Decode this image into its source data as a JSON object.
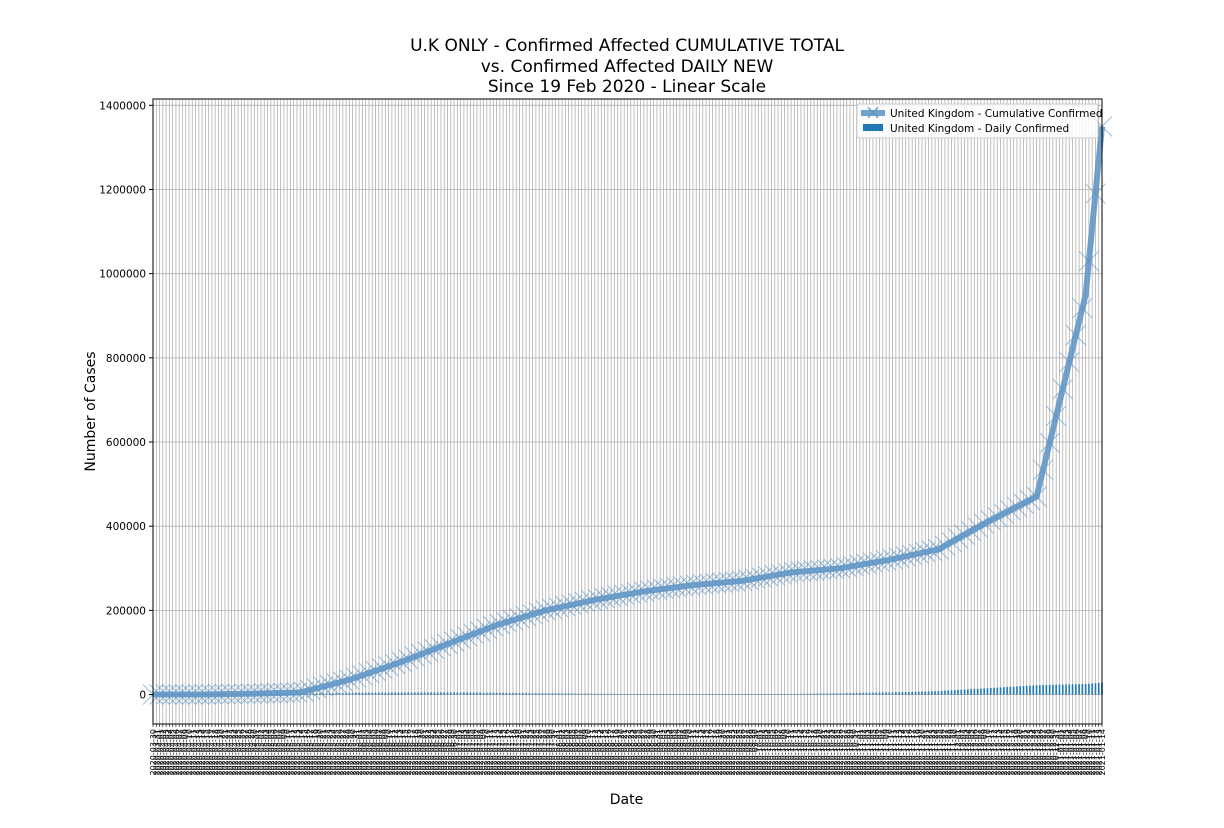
{
  "chart_data": {
    "type": "line",
    "title": "U.K ONLY - Confirmed Affected CUMULATIVE TOTAL",
    "subtitle": "vs. Confirmed Affected DAILY NEW",
    "subtitle2": "Since 19 Feb 2020 - Linear Scale",
    "xlabel": "Date",
    "ylabel": "Number of Cases",
    "ylim": [
      -70000,
      1415000
    ],
    "yticks": [
      0,
      200000,
      400000,
      600000,
      800000,
      1000000,
      1200000,
      1400000
    ],
    "x_range": [
      "2020-03-30",
      "2021-01-14"
    ],
    "grid": true,
    "legend_position": "top-right",
    "x": [
      "2020-03-30",
      "2020-04-14",
      "2020-04-29",
      "2020-05-14",
      "2020-05-29",
      "2020-06-13",
      "2020-06-28",
      "2020-07-13",
      "2020-07-28",
      "2020-08-12",
      "2020-08-27",
      "2020-09-11",
      "2020-09-26",
      "2020-10-11",
      "2020-10-26",
      "2020-11-10",
      "2020-11-25",
      "2020-12-10",
      "2020-12-25",
      "2021-01-09",
      "2021-01-14"
    ],
    "series": [
      {
        "name": "United Kingdom - Cumulative Confirmed",
        "kind": "line",
        "color": "#5b93c4",
        "marker": "x",
        "values": [
          0,
          0,
          2000,
          5000,
          35000,
          75000,
          120000,
          165000,
          200000,
          225000,
          245000,
          260000,
          270000,
          290000,
          300000,
          320000,
          345000,
          410000,
          470000,
          950000,
          1350000
        ]
      },
      {
        "name": "United Kingdom - Daily Confirmed",
        "kind": "bar",
        "color": "#1f77b4",
        "values": [
          0,
          0,
          500,
          2000,
          4000,
          4500,
          5000,
          4000,
          3000,
          2000,
          1000,
          500,
          800,
          1500,
          3000,
          5000,
          8000,
          15000,
          22000,
          25000,
          28000
        ]
      }
    ]
  }
}
